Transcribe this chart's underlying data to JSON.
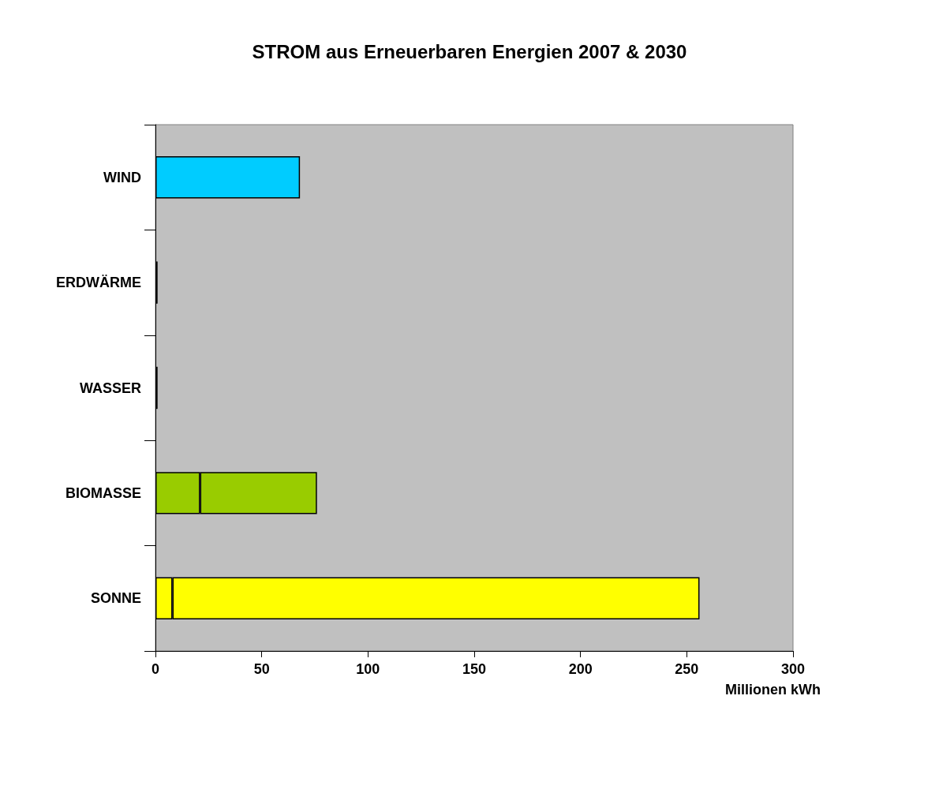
{
  "chart_data": {
    "type": "bar",
    "title": "STROM aus Erneuerbaren Energien 2007 & 2030",
    "xlabel": "Millionen kWh",
    "orientation": "horizontal",
    "stacked": true,
    "categories": [
      "WIND",
      "ERDWÄRME",
      "WASSER",
      "BIOMASSE",
      "SONNE"
    ],
    "series": [
      {
        "colors": [
          "#33ccff",
          "#4d4d80",
          "#3366ff",
          "#99cc00",
          "#ffff00"
        ],
        "values": [
          0,
          1,
          1,
          21,
          8
        ]
      },
      {
        "colors": [
          "#00ccff",
          "#4d4d80",
          "#999999",
          "#99cc00",
          "#ffff00"
        ],
        "values": [
          68,
          0,
          0,
          55,
          248
        ]
      }
    ],
    "xlim": [
      0,
      300
    ],
    "xticks": [
      0,
      50,
      100,
      150,
      200,
      250,
      300
    ],
    "grid": false
  }
}
